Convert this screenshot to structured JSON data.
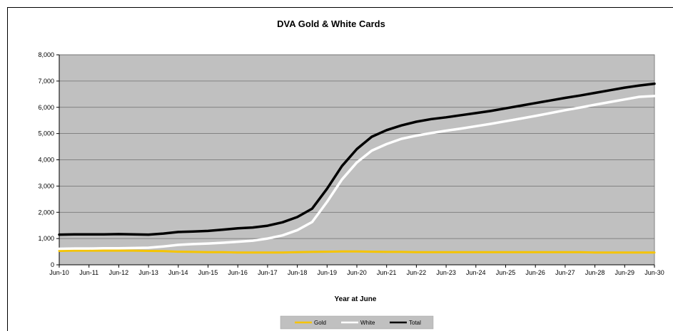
{
  "chart_data": {
    "type": "line",
    "title": "DVA Gold & White Cards",
    "xlabel": "Year at June",
    "ylabel": "",
    "ylim": [
      0,
      8000
    ],
    "yticks": [
      0,
      1000,
      2000,
      3000,
      4000,
      5000,
      6000,
      7000,
      8000
    ],
    "ytick_labels": [
      "0",
      "1,000",
      "2,000",
      "3,000",
      "4,000",
      "5,000",
      "6,000",
      "7,000",
      "8,000"
    ],
    "categories": [
      "Jun-10",
      "Jun-11",
      "Jun-12",
      "Jun-13",
      "Jun-14",
      "Jun-15",
      "Jun-16",
      "Jun-17",
      "Jun-18",
      "Jun-19",
      "Jun-20",
      "Jun-21",
      "Jun-22",
      "Jun-23",
      "Jun-24",
      "Jun-25",
      "Jun-26",
      "Jun-27",
      "Jun-28",
      "Jun-29",
      "Jun-30"
    ],
    "x": [
      10,
      10.5,
      11,
      11.5,
      12,
      12.5,
      13,
      13.5,
      14,
      14.5,
      15,
      15.5,
      16,
      16.5,
      17,
      17.5,
      18,
      18.5,
      19,
      19.5,
      20,
      20.5,
      21,
      21.5,
      22,
      22.5,
      23,
      23.5,
      24,
      24.5,
      25,
      25.5,
      26,
      26.5,
      27,
      27.5,
      28,
      28.5,
      29,
      29.5,
      30
    ],
    "series": [
      {
        "name": "Gold",
        "color": "#f5c400",
        "values": [
          530,
          540,
          540,
          540,
          540,
          540,
          530,
          520,
          500,
          490,
          480,
          480,
          470,
          470,
          470,
          470,
          480,
          490,
          500,
          510,
          510,
          500,
          490,
          490,
          480,
          480,
          480,
          480,
          480,
          480,
          480,
          480,
          480,
          480,
          480,
          480,
          470,
          470,
          470,
          470,
          470
        ]
      },
      {
        "name": "White",
        "color": "#ffffff",
        "values": [
          610,
          620,
          620,
          630,
          630,
          640,
          650,
          700,
          760,
          790,
          810,
          840,
          880,
          920,
          1000,
          1120,
          1320,
          1630,
          2400,
          3250,
          3900,
          4350,
          4600,
          4800,
          4920,
          5020,
          5110,
          5190,
          5280,
          5370,
          5470,
          5570,
          5670,
          5780,
          5890,
          5990,
          6100,
          6200,
          6300,
          6400,
          6430
        ]
      },
      {
        "name": "Total",
        "color": "#000000",
        "values": [
          1150,
          1160,
          1160,
          1160,
          1170,
          1160,
          1150,
          1190,
          1250,
          1270,
          1290,
          1340,
          1390,
          1420,
          1490,
          1620,
          1820,
          2140,
          2900,
          3760,
          4410,
          4880,
          5130,
          5310,
          5450,
          5550,
          5620,
          5700,
          5780,
          5860,
          5960,
          6060,
          6160,
          6260,
          6360,
          6450,
          6550,
          6650,
          6750,
          6830,
          6900
        ]
      }
    ],
    "legend": [
      "Gold",
      "White",
      "Total"
    ],
    "legend_position": "bottom",
    "plot_background": "#c0c0c0",
    "grid": true
  }
}
